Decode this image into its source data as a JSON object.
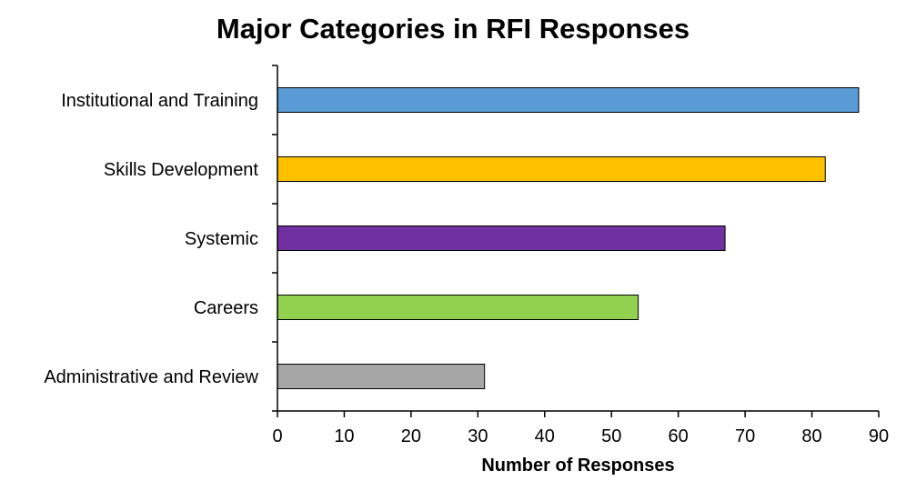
{
  "chart_data": {
    "type": "bar",
    "orientation": "horizontal",
    "title": "Major Categories in RFI Responses",
    "xlabel": "Number of Responses",
    "ylabel": "",
    "categories": [
      "Institutional and Training",
      "Skills Development",
      "Systemic",
      "Careers",
      "Administrative and Review"
    ],
    "values": [
      87,
      82,
      67,
      54,
      31
    ],
    "colors": [
      "#5b9bd5",
      "#ffc000",
      "#7030a0",
      "#92d050",
      "#a6a6a6"
    ],
    "xlim": [
      0,
      90
    ],
    "xticks": [
      0,
      10,
      20,
      30,
      40,
      50,
      60,
      70,
      80,
      90
    ],
    "grid": false,
    "legend": "none"
  }
}
